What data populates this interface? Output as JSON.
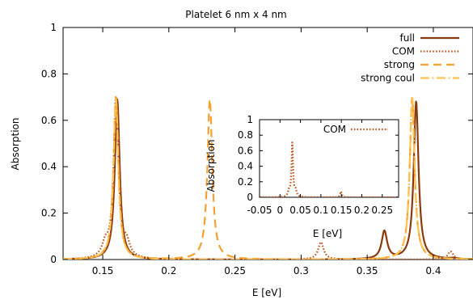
{
  "chart_data": [
    {
      "type": "line",
      "title": "Platelet 6 nm x 4 nm",
      "xlabel": "E [eV]",
      "ylabel": "Absorption",
      "xlim": [
        0.12,
        0.43
      ],
      "ylim": [
        0,
        1
      ],
      "xticks": [
        0.15,
        0.2,
        0.25,
        0.3,
        0.35,
        0.4
      ],
      "xtick_labels": [
        "0.15",
        "0.2",
        "0.25",
        "0.3",
        "0.35",
        "0.4"
      ],
      "yticks": [
        0,
        0.2,
        0.4,
        0.6,
        0.8,
        1
      ],
      "ytick_labels": [
        "0",
        "0.2",
        "0.4",
        "0.6",
        "0.8",
        "1"
      ],
      "grid": false,
      "legend_position": "top-right",
      "series": [
        {
          "name": "full",
          "color": "#8b3a0e",
          "style": "solid",
          "peaks": [
            {
              "E": 0.161,
              "A": 0.69,
              "width": 0.0022
            },
            {
              "E": 0.363,
              "A": 0.12,
              "width": 0.0025
            },
            {
              "E": 0.387,
              "A": 0.68,
              "width": 0.0022
            },
            {
              "E": 0.415,
              "A": 0.004,
              "width": 0.003
            }
          ]
        },
        {
          "name": "COM",
          "color": "#c0541a",
          "style": "dotted",
          "peaks": [
            {
              "E": 0.152,
              "A": 0.055,
              "width": 0.003
            },
            {
              "E": 0.16,
              "A": 0.69,
              "width": 0.0022
            },
            {
              "E": 0.168,
              "A": 0.06,
              "width": 0.003
            },
            {
              "E": 0.315,
              "A": 0.075,
              "width": 0.0025
            },
            {
              "E": 0.413,
              "A": 0.035,
              "width": 0.0025
            }
          ]
        },
        {
          "name": "strong",
          "color": "#f5a030",
          "style": "dashed",
          "peaks": [
            {
              "E": 0.16,
              "A": 0.7,
              "width": 0.0022
            },
            {
              "E": 0.231,
              "A": 0.69,
              "width": 0.0022
            },
            {
              "E": 0.384,
              "A": 0.7,
              "width": 0.0022
            }
          ]
        },
        {
          "name": "strong coul",
          "color": "#ffc24f",
          "style": "dash-dot",
          "peaks": [
            {
              "E": 0.16,
              "A": 0.69,
              "width": 0.0022
            },
            {
              "E": 0.384,
              "A": 0.7,
              "width": 0.0022
            }
          ]
        }
      ]
    },
    {
      "type": "line",
      "title": "",
      "xlabel": "E [eV]",
      "ylabel": "Absorption",
      "xlim": [
        -0.05,
        0.29
      ],
      "ylim": [
        0,
        1
      ],
      "xticks": [
        -0.05,
        0,
        0.05,
        0.1,
        0.15,
        0.2,
        0.25
      ],
      "xtick_labels": [
        "-0.05",
        "0",
        "0.05",
        "0.1",
        "0.15",
        "0.2",
        "0.25"
      ],
      "yticks": [
        0,
        0.2,
        0.4,
        0.6,
        0.8,
        1
      ],
      "ytick_labels": [
        "0",
        "0.2",
        "0.4",
        "0.6",
        "0.8",
        "1"
      ],
      "grid": false,
      "legend_position": "top-right",
      "series": [
        {
          "name": "COM",
          "color": "#c0541a",
          "style": "dotted",
          "peaks": [
            {
              "E": 0.022,
              "A": 0.07,
              "width": 0.003
            },
            {
              "E": 0.03,
              "A": 0.69,
              "width": 0.0022
            },
            {
              "E": 0.038,
              "A": 0.075,
              "width": 0.003
            },
            {
              "E": 0.149,
              "A": 0.075,
              "width": 0.0025
            }
          ]
        }
      ]
    }
  ]
}
